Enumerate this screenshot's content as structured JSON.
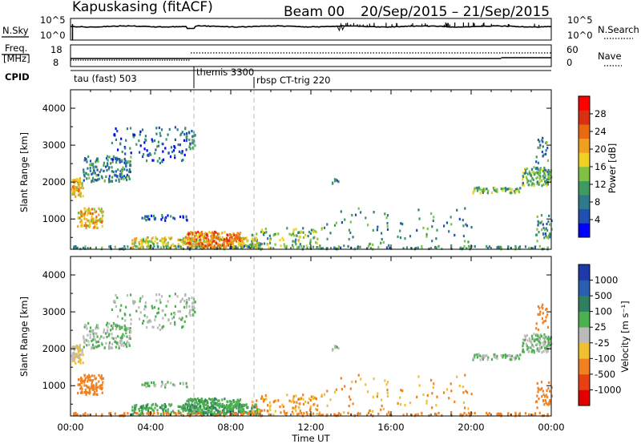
{
  "header": {
    "station": "Kapuskasing (fitACF)",
    "beam": "Beam 00",
    "date_range": "20/Sep/2015 – 21/Sep/2015"
  },
  "noise_panel": {
    "left_label": "N.Sky",
    "left_ticks": [
      "10^5",
      "10^0"
    ],
    "right_label": "N.Search",
    "right_ticks": [
      "10^5",
      "10^0"
    ]
  },
  "freq_panel": {
    "left_label_1": "Freq.",
    "left_label_2": "[MHz]",
    "left_ticks": [
      "18",
      "8"
    ],
    "right_label": "Nave",
    "right_ticks": [
      "60",
      "0"
    ]
  },
  "cpid": {
    "label": "CPID",
    "segments": [
      {
        "name": "tau (fast) 503",
        "start_hour": 0
      },
      {
        "name": "themis 3300",
        "start_hour": 6
      },
      {
        "name": "rbsp CT-trig 220",
        "start_hour": 9
      }
    ]
  },
  "power_panel": {
    "ylabel": "Slant Range [km]",
    "yticks": [
      "4000",
      "3000",
      "2000",
      "1000"
    ],
    "colorbar_label": "Power [dB]",
    "colorbar_ticks": [
      "28",
      "24",
      "20",
      "16",
      "12",
      "8",
      "4"
    ],
    "colors": [
      "#0000ff",
      "#1f4fb0",
      "#2e7a8a",
      "#3f9a60",
      "#7fc242",
      "#f0d020",
      "#f0a020",
      "#e86a10",
      "#d83010",
      "#ff0000"
    ]
  },
  "velocity_panel": {
    "ylabel": "Slant Range [km]",
    "yticks": [
      "4000",
      "3000",
      "2000",
      "1000"
    ],
    "colorbar_label": "Velocity [m s⁻¹]",
    "colorbar_ticks": [
      "1000",
      "500",
      "100",
      "25",
      "-25",
      "-100",
      "-500",
      "-1000"
    ],
    "colors": [
      "#1e3aa8",
      "#2a5eb0",
      "#2f8060",
      "#4caf50",
      "#bbbbbb",
      "#f0c030",
      "#f08020",
      "#e84010",
      "#e00000"
    ]
  },
  "time_axis": {
    "label": "Time UT",
    "ticks": [
      "00:00",
      "04:00",
      "08:00",
      "12:00",
      "16:00",
      "20:00",
      "00:00"
    ]
  },
  "chart_data": {
    "type": "heatmap",
    "x_range_hours": [
      0,
      24
    ],
    "y_range_km": [
      180,
      4500
    ],
    "scatter_regions": [
      {
        "t0": 0.0,
        "t1": 0.6,
        "r0": 1600,
        "r1": 2100,
        "power": 18,
        "vel": -25,
        "dens": 0.85
      },
      {
        "t0": 0.6,
        "t1": 3.0,
        "r0": 2000,
        "r1": 2700,
        "power": 8,
        "vel": 25,
        "dens": 0.35
      },
      {
        "t0": 2.0,
        "t1": 5.8,
        "r0": 2500,
        "r1": 3500,
        "power": 6,
        "vel": 25,
        "dens": 0.12
      },
      {
        "t0": 5.7,
        "t1": 6.2,
        "r0": 2900,
        "r1": 3400,
        "power": 8,
        "vel": 25,
        "dens": 0.5
      },
      {
        "t0": 0.3,
        "t1": 1.6,
        "r0": 750,
        "r1": 1300,
        "power": 18,
        "vel": -300,
        "dens": 0.55
      },
      {
        "t0": 3.5,
        "t1": 5.8,
        "r0": 950,
        "r1": 1100,
        "power": 6,
        "vel": 25,
        "dens": 0.35
      },
      {
        "t0": 3.0,
        "t1": 9.5,
        "r0": 200,
        "r1": 500,
        "power": 16,
        "vel": 80,
        "dens": 0.5
      },
      {
        "t0": 5.7,
        "t1": 8.5,
        "r0": 200,
        "r1": 650,
        "power": 22,
        "vel": 80,
        "dens": 0.7
      },
      {
        "t0": 9.0,
        "t1": 12.5,
        "r0": 200,
        "r1": 750,
        "power": 12,
        "vel": -100,
        "dens": 0.2
      },
      {
        "t0": 12.5,
        "t1": 20.0,
        "r0": 200,
        "r1": 1300,
        "power": 10,
        "vel": -100,
        "dens": 0.04
      },
      {
        "t0": 13.0,
        "t1": 13.4,
        "r0": 1950,
        "r1": 2080,
        "power": 6,
        "vel": 25,
        "dens": 0.6
      },
      {
        "t0": 20.0,
        "t1": 22.5,
        "r0": 1700,
        "r1": 1850,
        "power": 12,
        "vel": 25,
        "dens": 0.6
      },
      {
        "t0": 22.5,
        "t1": 24.0,
        "r0": 1900,
        "r1": 2400,
        "power": 12,
        "vel": 25,
        "dens": 0.6
      },
      {
        "t0": 23.2,
        "t1": 23.8,
        "r0": 2500,
        "r1": 3200,
        "power": 8,
        "vel": -300,
        "dens": 0.2
      },
      {
        "t0": 23.2,
        "t1": 24.0,
        "r0": 400,
        "r1": 1100,
        "power": 8,
        "vel": -300,
        "dens": 0.25
      },
      {
        "t0": 0.0,
        "t1": 24.0,
        "r0": 180,
        "r1": 260,
        "power": 10,
        "vel": -200,
        "dens": 0.35
      }
    ],
    "noise_sky_log": [
      3.0,
      3.2,
      3.6,
      3.3
    ],
    "freq_mhz": 10.5,
    "nave": [
      10,
      28
    ]
  }
}
